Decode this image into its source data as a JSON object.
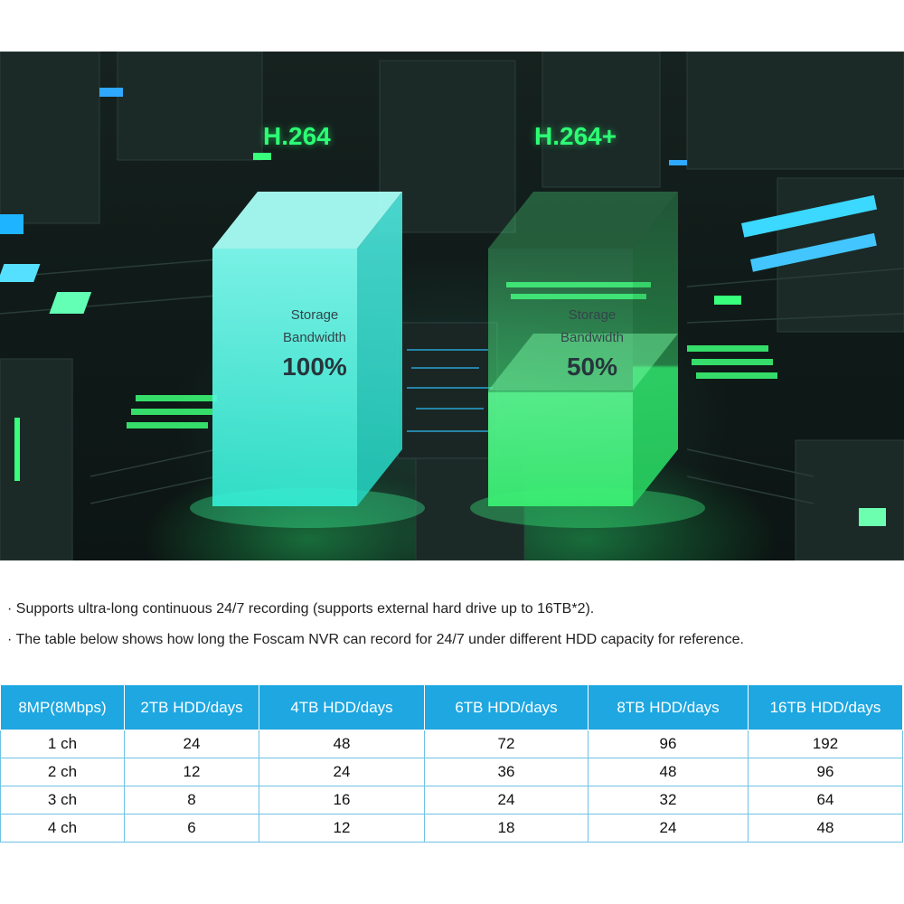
{
  "hero": {
    "left_codec": "H.264",
    "right_codec": "H.264+",
    "left_pillar": {
      "line1": "Storage",
      "line2": "Bandwidth",
      "percent": "100%"
    },
    "right_pillar": {
      "line1": "Storage",
      "line2": "Bandwidth",
      "percent": "50%"
    },
    "colors": {
      "left_pillar": "#3ff5dc",
      "right_pillar": "#3cf07a",
      "label": "#2cff74"
    }
  },
  "notes": [
    "· Supports ultra-long continuous 24/7 recording (supports external hard drive up to 16TB*2).",
    "· The table below shows how long the Foscam NVR can record for 24/7 under different HDD capacity for reference."
  ],
  "table": {
    "header_color": "#1ea7e1",
    "headers": [
      "8MP(8Mbps)",
      "2TB HDD/days",
      "4TB HDD/days",
      "6TB HDD/days",
      "8TB HDD/days",
      "16TB HDD/days"
    ],
    "rows": [
      [
        "1 ch",
        "24",
        "48",
        "72",
        "96",
        "192"
      ],
      [
        "2 ch",
        "12",
        "24",
        "36",
        "48",
        "96"
      ],
      [
        "3 ch",
        "8",
        "16",
        "24",
        "32",
        "64"
      ],
      [
        "4 ch",
        "6",
        "12",
        "18",
        "24",
        "48"
      ]
    ]
  }
}
